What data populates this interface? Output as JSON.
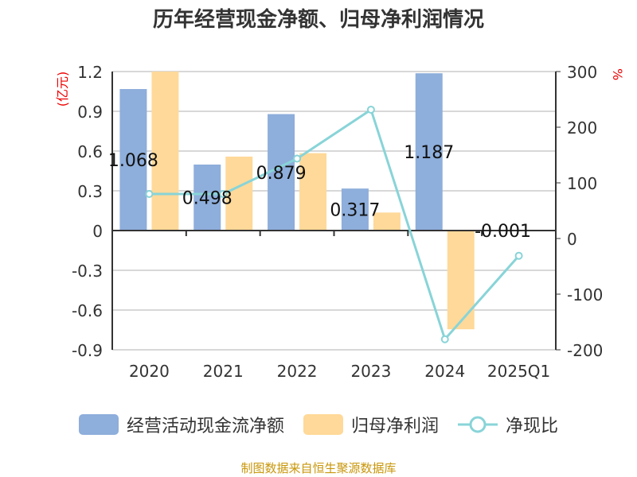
{
  "title": "历年经营现金净额、归母净利润情况",
  "footer": "制图数据来自恒生聚源数据库",
  "chart_data": {
    "type": "bar",
    "categories": [
      "2020",
      "2021",
      "2022",
      "2023",
      "2024",
      "2025Q1"
    ],
    "left_axis": {
      "label": "(亿元)",
      "range": [
        -0.9,
        1.2
      ],
      "ticks": [
        "-0.9",
        "-0.6",
        "-0.3",
        "0",
        "0.3",
        "0.6",
        "0.9",
        "1.2"
      ]
    },
    "right_axis": {
      "label": "%",
      "range": [
        -200,
        300
      ],
      "ticks": [
        "-200",
        "-100",
        "0",
        "100",
        "200",
        "300"
      ]
    },
    "grid": true,
    "legend_position": "bottom",
    "series": [
      {
        "name": "经营活动现金流净额",
        "type": "bar",
        "axis": "left",
        "color": "#8eaedb",
        "values": [
          1.068,
          0.498,
          0.879,
          0.317,
          1.187,
          -0.001
        ],
        "labels": [
          "1.068",
          "0.498",
          "0.879",
          "0.317",
          "1.187",
          "-0.001"
        ]
      },
      {
        "name": "归母净利润",
        "type": "bar",
        "axis": "left",
        "color": "#ffd999",
        "values": [
          1.335,
          0.558,
          0.584,
          0.136,
          -0.745,
          0.003
        ]
      },
      {
        "name": "净现比",
        "type": "line",
        "axis": "right",
        "color": "#88d4d8",
        "values": [
          80,
          80,
          143.5,
          231.5,
          -181,
          -31
        ]
      }
    ]
  }
}
